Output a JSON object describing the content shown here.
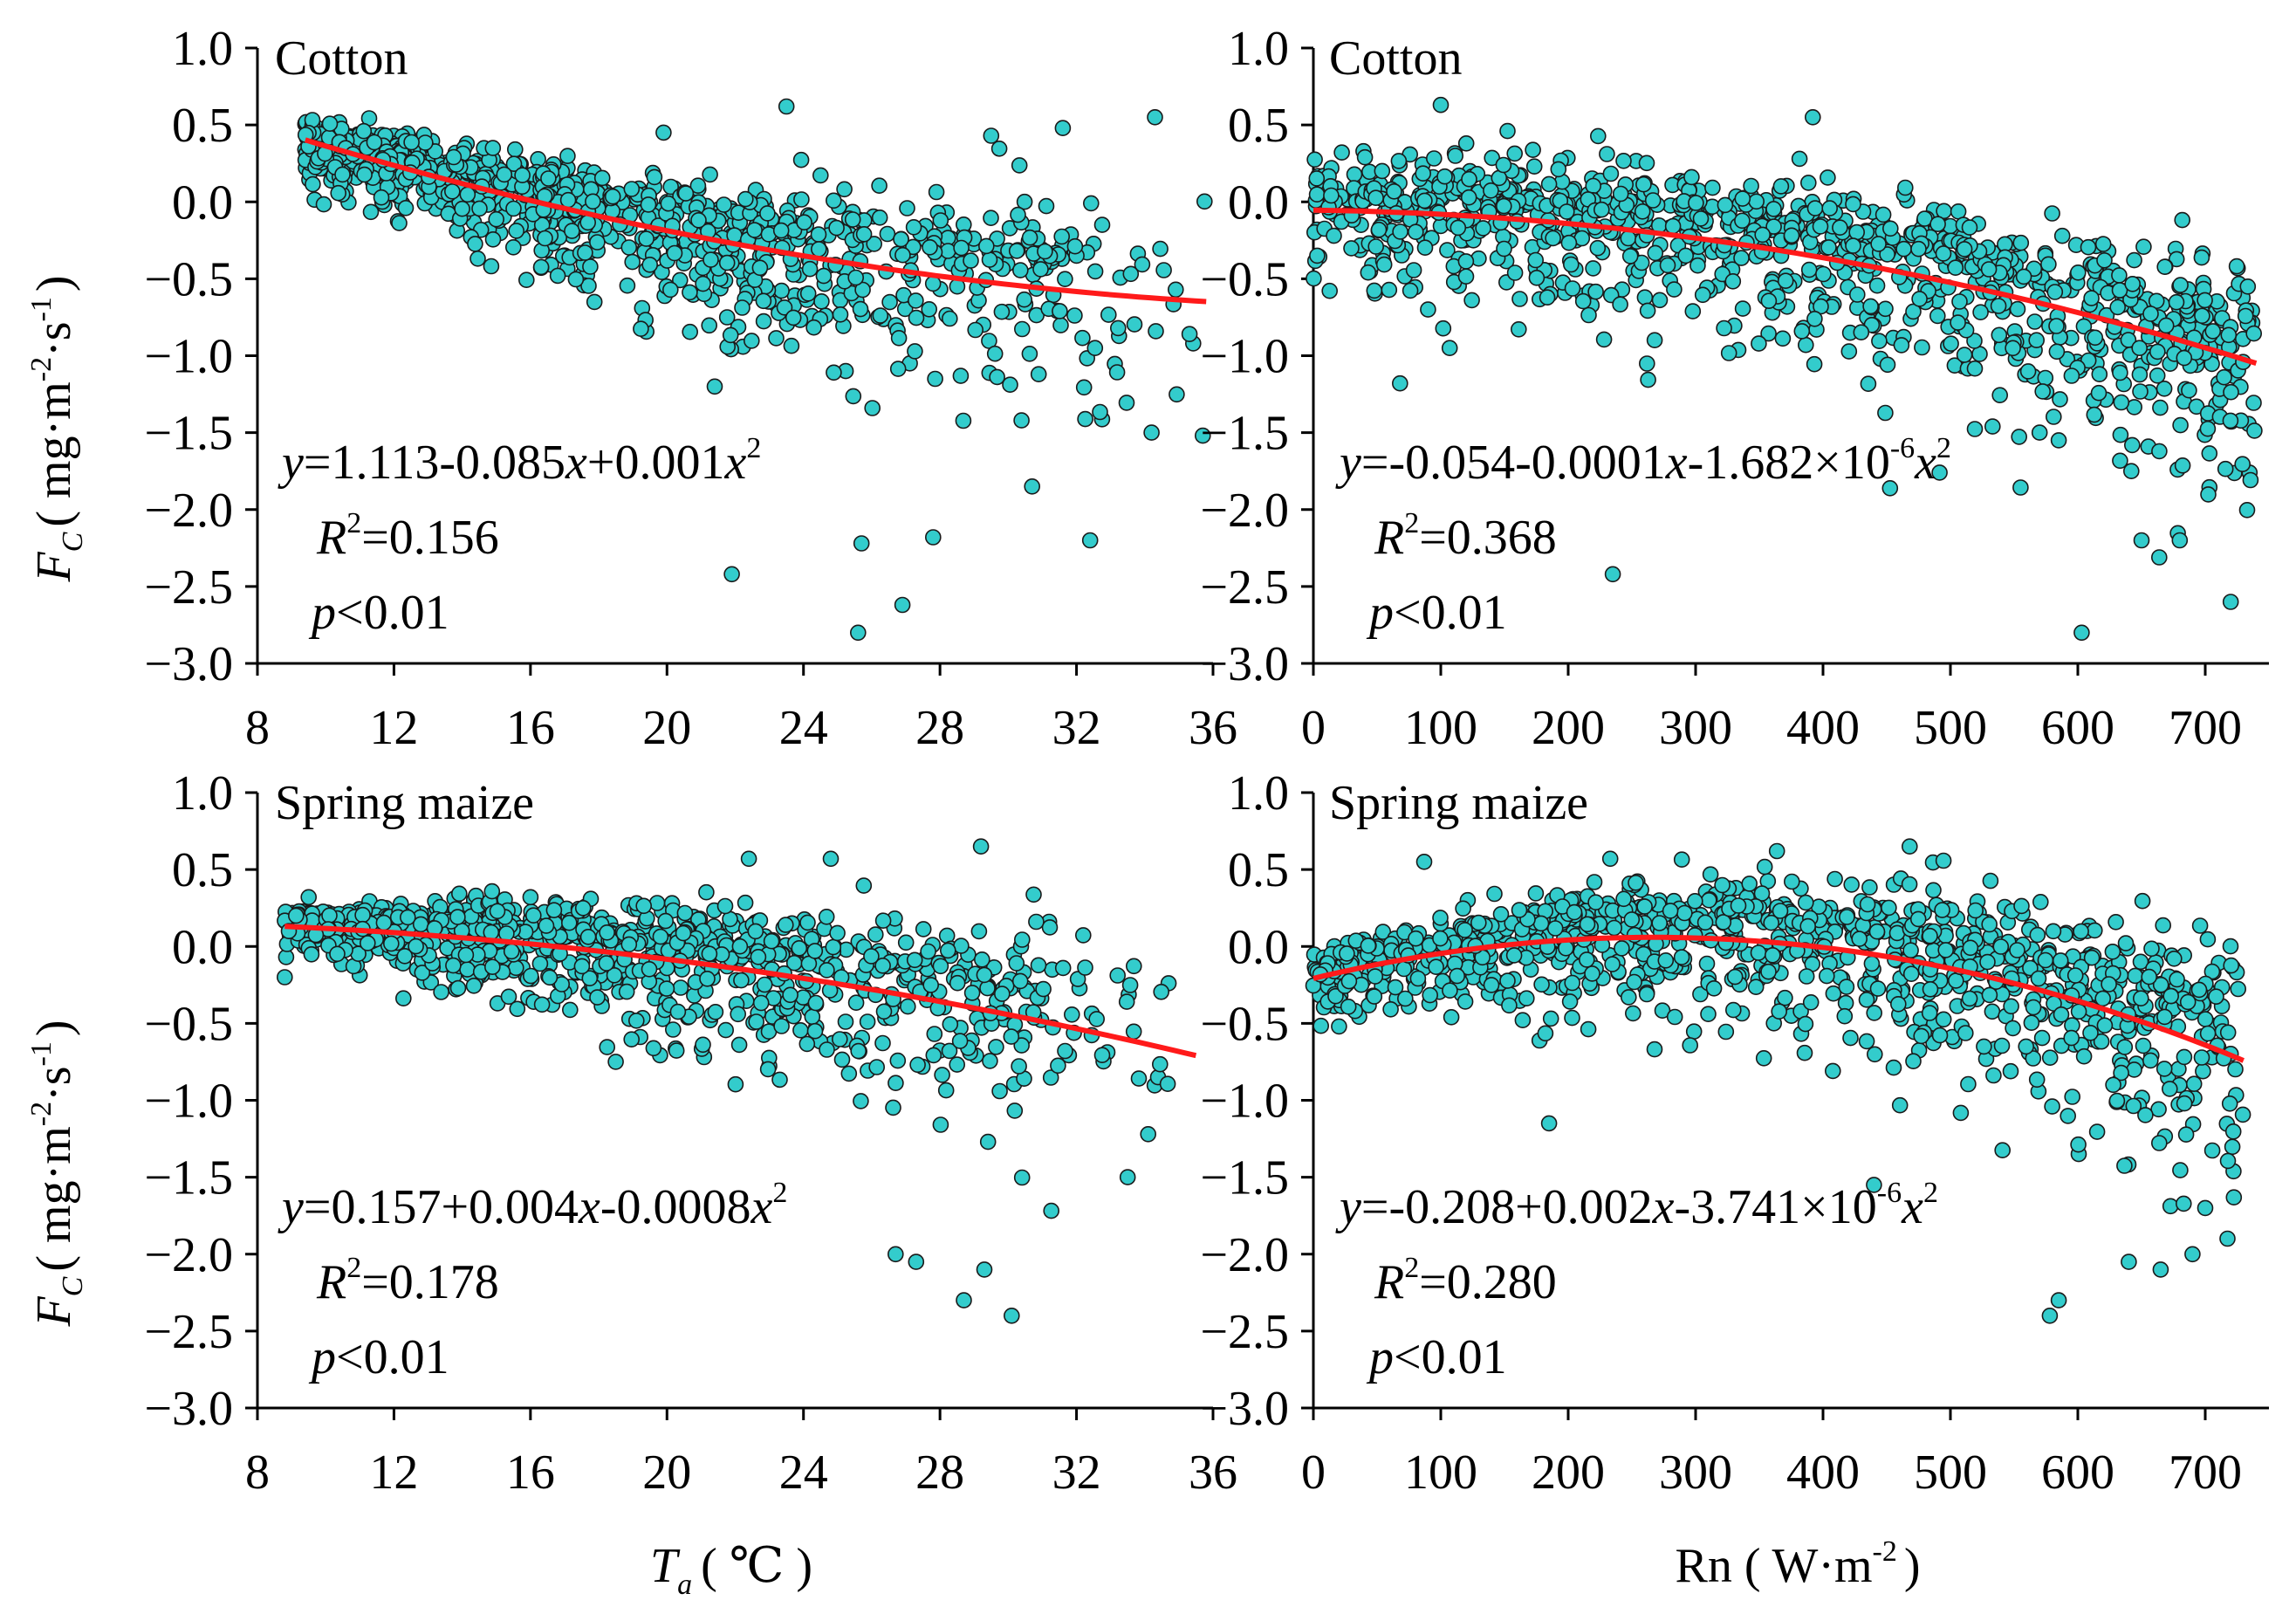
{
  "figure": {
    "ylabel": {
      "main": "F",
      "sub": "C",
      "open": "( mg·m",
      "exp1": "-2",
      "mid": "·s",
      "exp2": "-1",
      "close": ")"
    },
    "xlabel_left": {
      "main": "T",
      "sub": "a",
      "unit": "( ℃ )"
    },
    "xlabel_right": {
      "main": "Rn ( W·m",
      "exp": "-2",
      "close": ")"
    },
    "colors": {
      "point": "#33CCCC",
      "point_edge": "#1a1a1a",
      "fit": "#FF1A1A",
      "axis": "#000000"
    }
  },
  "chart_data": [
    {
      "type": "scatter",
      "title": "Cotton",
      "xlabel": "Ta (℃)",
      "ylabel": "FC (mg·m-2·s-1)",
      "xlim": [
        8,
        36
      ],
      "ylim": [
        -3.0,
        1.0
      ],
      "xticks": [
        8,
        12,
        16,
        20,
        24,
        28,
        32,
        36
      ],
      "yticks": [
        1.0,
        0.5,
        0.0,
        -0.5,
        -1.0,
        -1.5,
        -2.0,
        -2.5,
        -3.0
      ],
      "fit": {
        "a": 1.113,
        "b": -0.085,
        "c": 0.001,
        "xrange": [
          9.4,
          35.8
        ]
      },
      "equation": {
        "pre": "y",
        "text": "=1.113-0.085",
        "var": "x",
        "text2": "+0.001",
        "var2": "x",
        "exp": "2"
      },
      "r2": {
        "label": "R",
        "exp": "2",
        "value": "=0.156"
      },
      "p": {
        "label": "p",
        "value": "<0.01"
      },
      "cloud": {
        "n": 1100,
        "xmin": 9.4,
        "xmax": 35.8,
        "xskew": 0.55,
        "spread_low": 0.12,
        "spread_high": 0.48,
        "seed": 11
      },
      "outliers": [
        [
          23.5,
          0.62
        ],
        [
          34.3,
          0.55
        ],
        [
          31.6,
          0.48
        ],
        [
          29.5,
          0.43
        ],
        [
          25.6,
          -2.8
        ],
        [
          26.9,
          -2.62
        ],
        [
          21.9,
          -2.42
        ],
        [
          32.4,
          -2.2
        ],
        [
          27.8,
          -2.18
        ],
        [
          25.7,
          -2.22
        ],
        [
          30.7,
          -1.85
        ],
        [
          35.7,
          -1.52
        ],
        [
          34.2,
          -1.5
        ],
        [
          21.4,
          -1.2
        ],
        [
          16.8,
          -0.48
        ],
        [
          14.9,
          0.35
        ],
        [
          19.9,
          0.45
        ]
      ]
    },
    {
      "type": "scatter",
      "title": "Cotton",
      "xlabel": "Rn (W·m-2)",
      "ylabel": "FC (mg·m-2·s-1)",
      "xlim": [
        0,
        750
      ],
      "ylim": [
        -3.0,
        1.0
      ],
      "xticks": [
        0,
        100,
        200,
        300,
        400,
        500,
        600,
        700
      ],
      "yticks": [
        1.0,
        0.5,
        0.0,
        -0.5,
        -1.0,
        -1.5,
        -2.0,
        -2.5,
        -3.0
      ],
      "fit": {
        "a": -0.054,
        "b": -0.0001,
        "c": -1.682e-06,
        "xrange": [
          0,
          740
        ]
      },
      "equation": {
        "pre": "y",
        "text": "=-0.054-0.0001",
        "var": "x",
        "text2": "-1.682×10",
        "exp0": "-6",
        "var2": "x",
        "exp": "2"
      },
      "r2": {
        "label": "R",
        "exp": "2",
        "value": "=0.368"
      },
      "p": {
        "label": "p",
        "value": "<0.01"
      },
      "cloud": {
        "n": 1100,
        "xmin": 0,
        "xmax": 740,
        "xskew": 1.0,
        "spread_low": 0.22,
        "spread_high": 0.45,
        "seed": 23
      },
      "outliers": [
        [
          100,
          0.63
        ],
        [
          392,
          0.55
        ],
        [
          120,
          0.38
        ],
        [
          603,
          -2.8
        ],
        [
          720,
          -2.6
        ],
        [
          235,
          -2.42
        ],
        [
          650,
          -2.2
        ],
        [
          680,
          -2.2
        ],
        [
          642,
          -1.75
        ],
        [
          68,
          -1.18
        ],
        [
          107,
          -0.95
        ],
        [
          90,
          -0.7
        ],
        [
          3,
          -0.35
        ],
        [
          585,
          -1.55
        ],
        [
          570,
          -1.5
        ]
      ]
    },
    {
      "type": "scatter",
      "title": "Spring maize",
      "xlabel": "Ta (℃)",
      "ylabel": "FC (mg·m-2·s-1)",
      "xlim": [
        8,
        36
      ],
      "ylim": [
        -3.0,
        1.0
      ],
      "xticks": [
        8,
        12,
        16,
        20,
        24,
        28,
        32,
        36
      ],
      "yticks": [
        1.0,
        0.5,
        0.0,
        -0.5,
        -1.0,
        -1.5,
        -2.0,
        -2.5,
        -3.0
      ],
      "fit": {
        "a": 0.157,
        "b": 0.004,
        "c": -0.0008,
        "xrange": [
          8.8,
          35.5
        ]
      },
      "equation": {
        "pre": "y",
        "text": "=0.157+0.004",
        "var": "x",
        "text2": "-0.0008",
        "var2": "x",
        "exp": "2"
      },
      "r2": {
        "label": "R",
        "exp": "2",
        "value": "=0.178"
      },
      "p": {
        "label": "p",
        "value": "<0.01"
      },
      "cloud": {
        "n": 1050,
        "xmin": 8.8,
        "xmax": 35.5,
        "xskew": 0.6,
        "spread_low": 0.08,
        "spread_high": 0.5,
        "seed": 37
      },
      "outliers": [
        [
          29.2,
          0.65
        ],
        [
          9.5,
          0.32
        ],
        [
          8.8,
          -0.2
        ],
        [
          30.1,
          -2.4
        ],
        [
          28.7,
          -2.3
        ],
        [
          29.3,
          -2.1
        ],
        [
          27.3,
          -2.05
        ],
        [
          26.7,
          -2.0
        ],
        [
          24.8,
          0.57
        ],
        [
          22.4,
          0.57
        ],
        [
          34.1,
          -1.22
        ],
        [
          33.5,
          -1.5
        ],
        [
          18.5,
          -0.75
        ]
      ]
    },
    {
      "type": "scatter",
      "title": "Spring maize",
      "xlabel": "Rn (W·m-2)",
      "ylabel": "FC (mg·m-2·s-1)",
      "xlim": [
        0,
        750
      ],
      "ylim": [
        -3.0,
        1.0
      ],
      "xticks": [
        0,
        100,
        200,
        300,
        400,
        500,
        600,
        700
      ],
      "yticks": [
        1.0,
        0.5,
        0.0,
        -0.5,
        -1.0,
        -1.5,
        -2.0,
        -2.5,
        -3.0
      ],
      "fit": {
        "a": -0.208,
        "b": 0.002,
        "c": -3.741e-06,
        "xrange": [
          0,
          730
        ]
      },
      "equation": {
        "pre": "y",
        "text": "=-0.208+0.002",
        "var": "x",
        "text2": "-3.741×10",
        "exp0": "-6",
        "var2": "x",
        "exp": "2"
      },
      "r2": {
        "label": "R",
        "exp": "2",
        "value": "=0.280"
      },
      "p": {
        "label": "p",
        "value": "<0.01"
      },
      "cloud": {
        "n": 1100,
        "xmin": 0,
        "xmax": 730,
        "xskew": 1.0,
        "spread_low": 0.12,
        "spread_high": 0.5,
        "seed": 53
      },
      "outliers": [
        [
          468,
          0.65
        ],
        [
          87,
          0.55
        ],
        [
          233,
          0.57
        ],
        [
          578,
          -2.4
        ],
        [
          585,
          -2.3
        ],
        [
          665,
          -2.1
        ],
        [
          640,
          -2.05
        ],
        [
          690,
          -2.0
        ],
        [
          185,
          -1.15
        ],
        [
          440,
          -1.55
        ],
        [
          700,
          -1.7
        ]
      ]
    }
  ]
}
